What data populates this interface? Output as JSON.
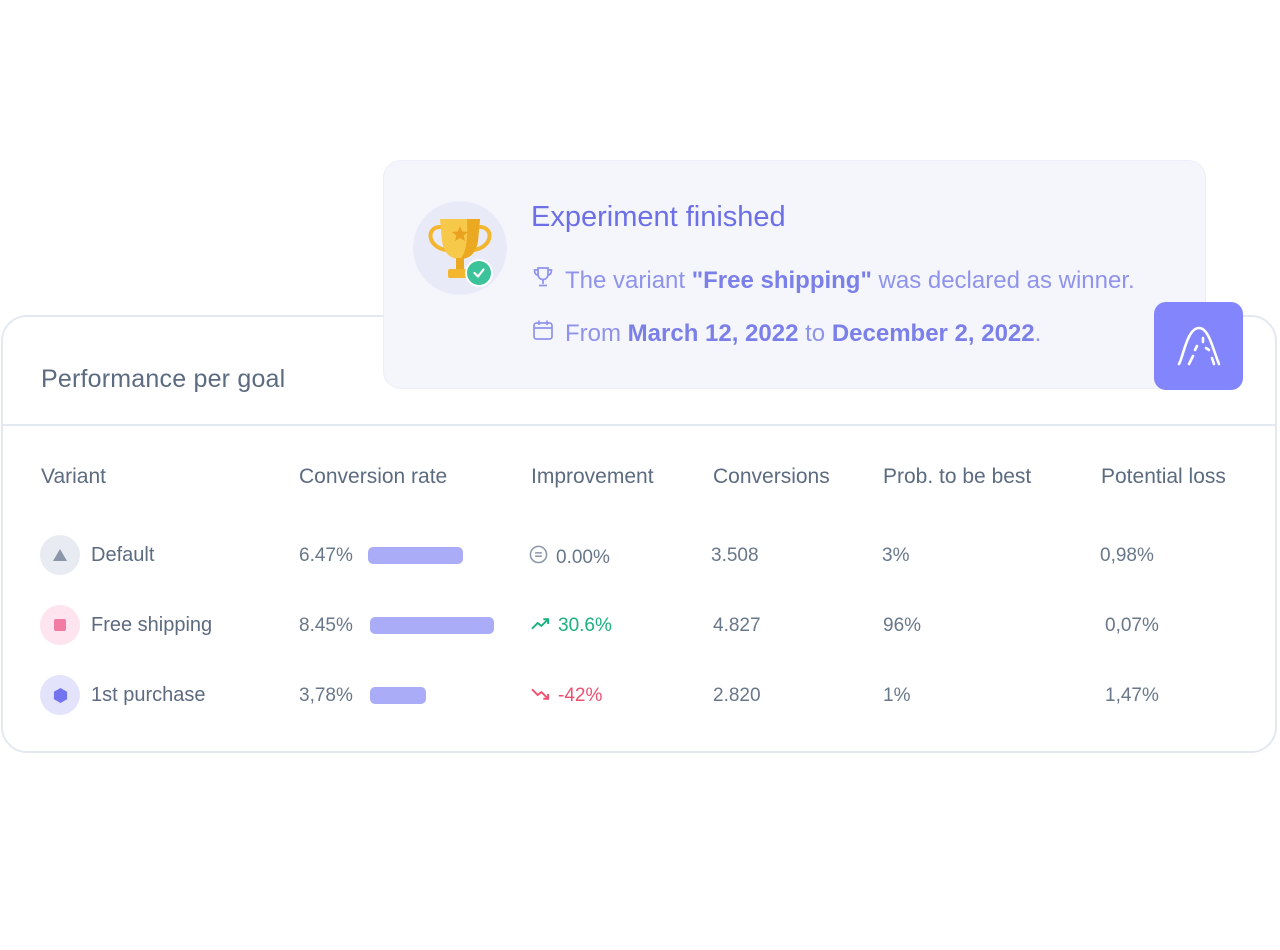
{
  "popup": {
    "title": "Experiment finished",
    "winner_prefix": "The variant ",
    "winner_name": "\"Free shipping\"",
    "winner_suffix": " was declared as winner.",
    "date_prefix": "From ",
    "date_start": "March 12, 2022",
    "date_mid": " to ",
    "date_end": "December 2, 2022",
    "date_suffix": ".",
    "icons": [
      "trophy-icon",
      "check-badge-icon",
      "trophy-outline-icon",
      "calendar-icon"
    ]
  },
  "logo": {
    "icon": "bell-curve-icon",
    "color": "#8285fb"
  },
  "panel": {
    "title": "Performance per goal",
    "columns": [
      "Variant",
      "Conversion rate",
      "Improvement",
      "Conversions",
      "Prob. to be best",
      "Potential loss"
    ],
    "rows": [
      {
        "variant": "Default",
        "icon": "triangle-icon",
        "rate": "6.47%",
        "rate_value": 6.47,
        "improvement": "0.00%",
        "trend": "neutral",
        "conversions": "3.508",
        "prob": "3%",
        "loss": "0,98%"
      },
      {
        "variant": "Free shipping",
        "icon": "square-icon",
        "rate": "8.45%",
        "rate_value": 8.45,
        "improvement": "30.6%",
        "trend": "up",
        "conversions": "4.827",
        "prob": "96%",
        "loss": "0,07%"
      },
      {
        "variant": "1st purchase",
        "icon": "hexagon-icon",
        "rate": "3,78%",
        "rate_value": 3.78,
        "improvement": "-42%",
        "trend": "down",
        "conversions": "2.820",
        "prob": "1%",
        "loss": "1,47%"
      }
    ]
  },
  "colors": {
    "accent": "#6c6fe6",
    "bar": "#aaacf7",
    "positive": "#1bb07c",
    "negative": "#ee4f6f"
  }
}
